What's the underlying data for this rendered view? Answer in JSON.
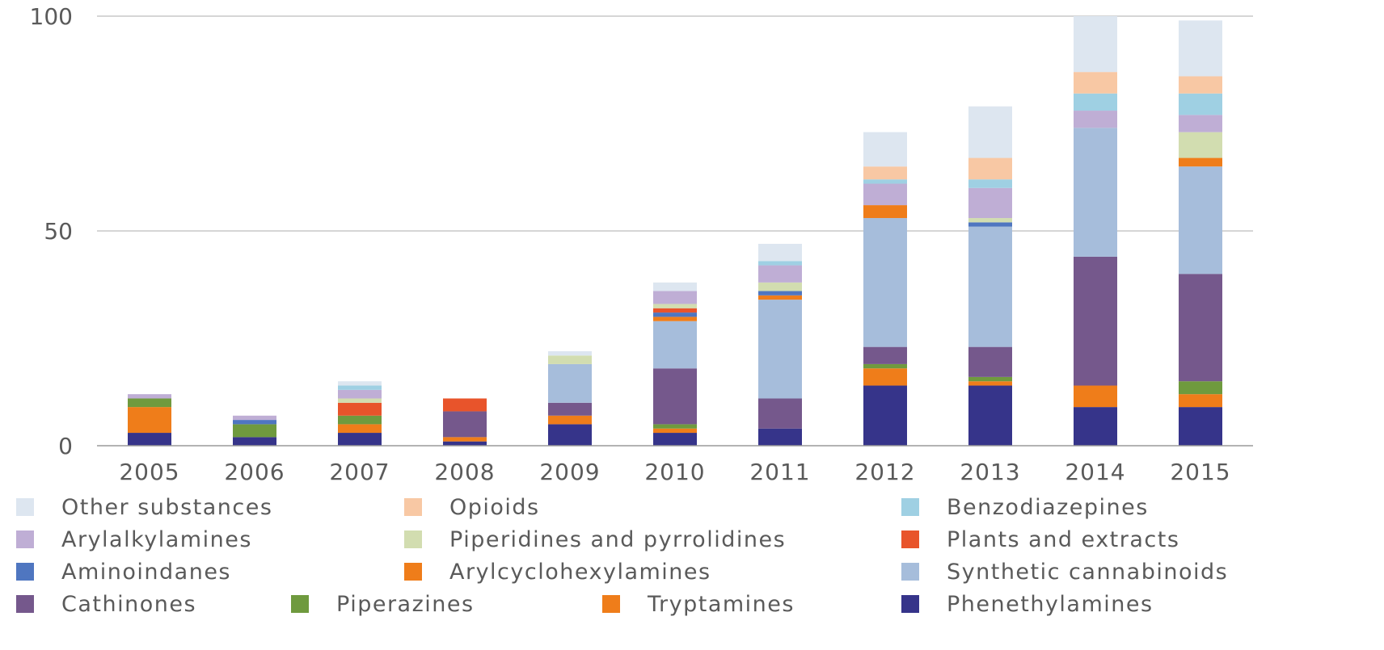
{
  "chart_data": {
    "type": "bar",
    "stacked": true,
    "categories": [
      "2005",
      "2006",
      "2007",
      "2008",
      "2009",
      "2010",
      "2011",
      "2012",
      "2013",
      "2014",
      "2015"
    ],
    "ylim": [
      0,
      100
    ],
    "yticks": [
      0,
      50,
      100
    ],
    "grid": true,
    "legend_placement": "bottom",
    "series": [
      {
        "name": "Phenethylamines",
        "color": "#36348a",
        "values": [
          3,
          2,
          3,
          1,
          5,
          3,
          4,
          14,
          14,
          9,
          9
        ]
      },
      {
        "name": "Tryptamines",
        "color": "#ef7d1a",
        "values": [
          6,
          0,
          2,
          1,
          2,
          1,
          0,
          4,
          1,
          5,
          3
        ]
      },
      {
        "name": "Piperazines",
        "color": "#6f9a3e",
        "values": [
          2,
          3,
          2,
          0,
          0,
          1,
          0,
          1,
          1,
          0,
          3
        ]
      },
      {
        "name": "Cathinones",
        "color": "#75588c",
        "values": [
          0,
          0,
          0,
          6,
          3,
          13,
          7,
          4,
          7,
          30,
          25
        ]
      },
      {
        "name": "Synthetic cannabinoids",
        "color": "#a6bddb",
        "values": [
          0,
          0,
          0,
          0,
          9,
          11,
          23,
          30,
          28,
          30,
          25
        ]
      },
      {
        "name": "Arylcyclohexylamines",
        "color": "#ef7d1a",
        "values": [
          0,
          0,
          0,
          0,
          0,
          1,
          1,
          3,
          0,
          0,
          2
        ]
      },
      {
        "name": "Aminoindanes",
        "color": "#4f76c0",
        "values": [
          0,
          1,
          0,
          0,
          0,
          1,
          1,
          0,
          1,
          0,
          0
        ]
      },
      {
        "name": "Plants and extracts",
        "color": "#e8542b",
        "values": [
          0,
          0,
          3,
          3,
          0,
          1,
          0,
          0,
          0,
          0,
          0
        ]
      },
      {
        "name": "Piperidines and pyrrolidines",
        "color": "#d2ddb0",
        "values": [
          0,
          0,
          1,
          0,
          2,
          1,
          2,
          0,
          1,
          0,
          6
        ]
      },
      {
        "name": "Arylalkylamines",
        "color": "#bfaed5",
        "values": [
          1,
          1,
          2,
          0,
          0,
          3,
          4,
          5,
          7,
          4,
          4
        ]
      },
      {
        "name": "Benzodiazepines",
        "color": "#9fd0e3",
        "values": [
          0,
          0,
          1,
          0,
          0,
          0,
          1,
          1,
          2,
          4,
          5
        ]
      },
      {
        "name": "Opioids",
        "color": "#f8c8a4",
        "values": [
          0,
          0,
          0,
          0,
          0,
          0,
          0,
          3,
          5,
          5,
          4
        ]
      },
      {
        "name": "Other substances",
        "color": "#dde6f0",
        "values": [
          0,
          0,
          1,
          0,
          1,
          2,
          4,
          8,
          12,
          13,
          13
        ]
      }
    ],
    "legend_rows": [
      [
        "Other substances",
        "Opioids",
        "Benzodiazepines"
      ],
      [
        "Arylalkylamines",
        "Piperidines and pyrrolidines",
        "Plants and extracts"
      ],
      [
        "Aminoindanes",
        "Arylcyclohexylamines",
        "Synthetic cannabinoids"
      ],
      [
        "Cathinones",
        "Piperazines",
        "Tryptamines",
        "Phenethylamines"
      ]
    ],
    "title": "",
    "xlabel": "",
    "ylabel": ""
  }
}
